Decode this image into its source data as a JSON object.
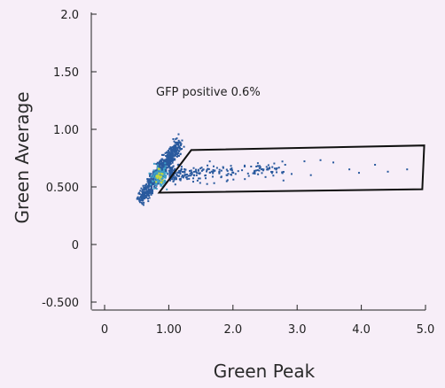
{
  "chart_data": {
    "type": "scatter",
    "title": "",
    "xlabel": "Green Peak",
    "ylabel": "Green Average",
    "xlim": [
      -0.2,
      5.0
    ],
    "ylim": [
      -0.55,
      2.0
    ],
    "x_ticks": [
      {
        "value": 0,
        "label": "0"
      },
      {
        "value": 1,
        "label": "1.00"
      },
      {
        "value": 2,
        "label": "2.0"
      },
      {
        "value": 3,
        "label": "3.0"
      },
      {
        "value": 4,
        "label": "4.0"
      },
      {
        "value": 5,
        "label": "5.0"
      }
    ],
    "y_ticks": [
      {
        "value": 2.0,
        "label": "2.0"
      },
      {
        "value": 1.5,
        "label": "1.50"
      },
      {
        "value": 1.0,
        "label": "1.00"
      },
      {
        "value": 0.5,
        "label": "0.500"
      },
      {
        "value": 0,
        "label": "0"
      },
      {
        "value": -0.5,
        "label": "-0.500"
      }
    ],
    "grid": false,
    "annotation": "GFP positive 0.6%",
    "gate": [
      [
        0.85,
        0.45
      ],
      [
        1.35,
        0.82
      ],
      [
        4.98,
        0.86
      ],
      [
        4.95,
        0.48
      ]
    ],
    "colors": {
      "low": "#2a5a9e",
      "mid": "#3fa0c8",
      "high": "#c8d83a",
      "gate": "#111111"
    }
  }
}
